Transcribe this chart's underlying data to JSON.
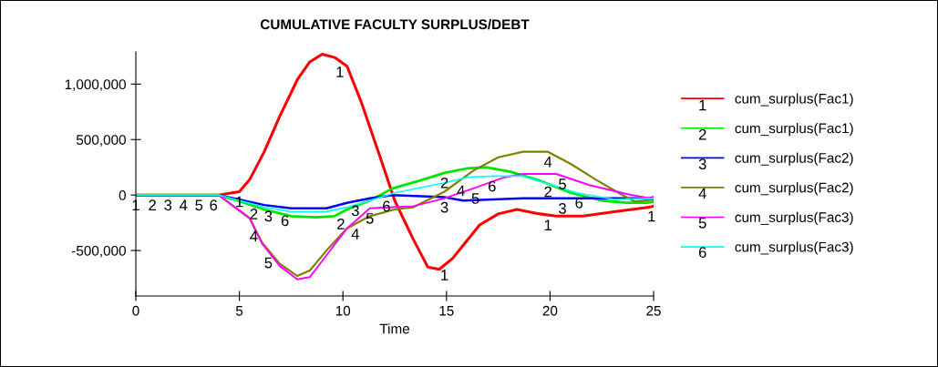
{
  "chart_data": {
    "type": "line",
    "title": "CUMULATIVE FACULTY SURPLUS/DEBT",
    "xlabel": "Time",
    "xlim": [
      0,
      25
    ],
    "xticks": [
      0,
      5,
      10,
      15,
      20,
      25
    ],
    "ylim": [
      -910000,
      1290000
    ],
    "yticks": [
      {
        "value": -500000,
        "label": "-500,000"
      },
      0,
      {
        "value": 500000,
        "label": "500,000"
      },
      {
        "value": 1000000,
        "label": "1,000,000"
      }
    ],
    "grid": false,
    "legend": "right",
    "line_style": "solid",
    "series": [
      {
        "name": "cum_surplus(Fac1)",
        "color": "#ff0000",
        "x": [
          0,
          4,
          5,
          5.5,
          6.2,
          6.95,
          7.8,
          8.4,
          9.0,
          9.6,
          10.2,
          10.9,
          11.8,
          12.5,
          13.4,
          14.1,
          14.65,
          15.3,
          16.6,
          17.5,
          18.4,
          19.5,
          20.3,
          21.6,
          23.1,
          24.8,
          25
        ],
        "values": [
          0,
          0,
          30000,
          140000,
          390000,
          710000,
          1040000,
          1200000,
          1270000,
          1240000,
          1160000,
          830000,
          340000,
          -50000,
          -400000,
          -650000,
          -670000,
          -570000,
          -270000,
          -170000,
          -130000,
          -170000,
          -190000,
          -190000,
          -150000,
          -110000,
          -100000
        ]
      },
      {
        "name": "cum_surplus(Fac1)",
        "color": "#00e600",
        "x": [
          0,
          4,
          4.9,
          6.2,
          7.5,
          8.7,
          9.6,
          10.2,
          11.3,
          12.4,
          13.7,
          14.9,
          16.0,
          16.9,
          18.1,
          19.5,
          21.0,
          22.5,
          23.7,
          24.7,
          25
        ],
        "values": [
          0,
          0,
          -50000,
          -130000,
          -190000,
          -200000,
          -190000,
          -130000,
          -50000,
          60000,
          130000,
          200000,
          240000,
          250000,
          210000,
          130000,
          20000,
          -50000,
          -70000,
          -70000,
          -60000
        ]
      },
      {
        "name": "cum_surplus(Fac2)",
        "color": "#0000ff",
        "x": [
          0,
          4,
          6.2,
          7.5,
          9.2,
          10.2,
          11.3,
          12.4,
          14.9,
          15.8,
          18.7,
          22.2,
          24.8,
          25
        ],
        "values": [
          0,
          0,
          -90000,
          -120000,
          -120000,
          -70000,
          -30000,
          0,
          -20000,
          -50000,
          -30000,
          -30000,
          -30000,
          -20000
        ]
      },
      {
        "name": "cum_surplus(Fac2)",
        "color": "#808000",
        "x": [
          0,
          4,
          5.5,
          6.1,
          6.95,
          7.8,
          8.4,
          9.3,
          10.2,
          11.3,
          12.5,
          13.4,
          14.9,
          16.3,
          17.5,
          18.7,
          19.9,
          21.0,
          22.2,
          23.4,
          24.1,
          25
        ],
        "values": [
          0,
          0,
          -210000,
          -430000,
          -620000,
          -730000,
          -680000,
          -480000,
          -300000,
          -190000,
          -130000,
          -110000,
          30000,
          220000,
          340000,
          390000,
          390000,
          280000,
          140000,
          10000,
          -60000,
          -40000
        ]
      },
      {
        "name": "cum_surplus(Fac3)",
        "color": "#ff00ff",
        "x": [
          0,
          4,
          5.5,
          6.1,
          6.95,
          7.8,
          8.4,
          9.3,
          10.2,
          11.3,
          12.4,
          13.4,
          14.9,
          16.3,
          17.8,
          18.7,
          20.3,
          21.9,
          23.7,
          24.8,
          25
        ],
        "values": [
          0,
          0,
          -210000,
          -440000,
          -640000,
          -760000,
          -740000,
          -520000,
          -300000,
          -120000,
          -110000,
          -100000,
          -30000,
          60000,
          160000,
          190000,
          190000,
          90000,
          10000,
          -30000,
          -20000
        ]
      },
      {
        "name": "cum_surplus(Fac3)",
        "color": "#00ffff",
        "x": [
          0,
          4,
          6.2,
          7.5,
          9.2,
          10.2,
          11.3,
          12.5,
          14.9,
          16.0,
          17.2,
          18.7,
          19.9,
          21.3,
          23.1,
          24.8,
          25
        ],
        "values": [
          0,
          0,
          -110000,
          -150000,
          -150000,
          -110000,
          -50000,
          20000,
          110000,
          160000,
          170000,
          170000,
          100000,
          20000,
          -40000,
          -30000,
          -30000
        ]
      }
    ],
    "annotations": [
      {
        "text": "1",
        "x": 0,
        "y": 0
      },
      {
        "text": "2",
        "x": 0.8,
        "y": 0
      },
      {
        "text": "3",
        "x": 1.55,
        "y": 0
      },
      {
        "text": "4",
        "x": 2.3,
        "y": 0
      },
      {
        "text": "5",
        "x": 3.05,
        "y": 0
      },
      {
        "text": "6",
        "x": 3.75,
        "y": 0
      },
      {
        "text": "1",
        "x": 5.0,
        "y": 30000
      },
      {
        "text": "1",
        "x": 9.85,
        "y": 1200000
      },
      {
        "text": "2",
        "x": 5.7,
        "y": -80000
      },
      {
        "text": "3",
        "x": 6.4,
        "y": -100000
      },
      {
        "text": "6",
        "x": 7.2,
        "y": -140000
      },
      {
        "text": "4",
        "x": 5.7,
        "y": -280000
      },
      {
        "text": "5",
        "x": 6.4,
        "y": -520000
      },
      {
        "text": "2",
        "x": 9.9,
        "y": -170000
      },
      {
        "text": "3",
        "x": 10.6,
        "y": -50000
      },
      {
        "text": "5",
        "x": 11.3,
        "y": -120000
      },
      {
        "text": "4",
        "x": 10.6,
        "y": -260000
      },
      {
        "text": "6",
        "x": 12.1,
        "y": -10000
      },
      {
        "text": "2",
        "x": 14.9,
        "y": 200000
      },
      {
        "text": "3",
        "x": 14.9,
        "y": -20000
      },
      {
        "text": "4",
        "x": 15.7,
        "y": 130000
      },
      {
        "text": "5",
        "x": 16.4,
        "y": 60000
      },
      {
        "text": "6",
        "x": 17.2,
        "y": 170000
      },
      {
        "text": "1",
        "x": 14.9,
        "y": -630000
      },
      {
        "text": "4",
        "x": 19.9,
        "y": 390000
      },
      {
        "text": "5",
        "x": 20.6,
        "y": 190000
      },
      {
        "text": "2",
        "x": 19.9,
        "y": 120000
      },
      {
        "text": "3",
        "x": 20.6,
        "y": -30000
      },
      {
        "text": "6",
        "x": 21.4,
        "y": 20000
      },
      {
        "text": "1",
        "x": 19.9,
        "y": -180000
      },
      {
        "text": "1",
        "x": 24.9,
        "y": -100000
      }
    ]
  }
}
